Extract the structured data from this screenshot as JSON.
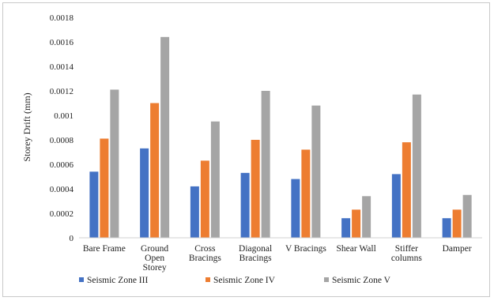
{
  "chart_data": {
    "type": "bar",
    "ylabel": "Storey Drift (mm)",
    "xlabel": "",
    "ylim": [
      0,
      0.0018
    ],
    "yticks": [
      "0",
      "0.0002",
      "0.0004",
      "0.0006",
      "0.0008",
      "0.001",
      "0.0012",
      "0.0014",
      "0.0016",
      "0.0018"
    ],
    "grid": false,
    "legend_position": "bottom",
    "categories": [
      [
        "Bare Frame"
      ],
      [
        "Ground",
        "Open",
        "Storey"
      ],
      [
        "Cross",
        "Bracings"
      ],
      [
        "Diagonal",
        "Bracings"
      ],
      [
        "V Bracings"
      ],
      [
        "Shear Wall"
      ],
      [
        "Stiffer",
        "columns"
      ],
      [
        "Damper"
      ]
    ],
    "series": [
      {
        "name": "Seismic Zone III",
        "color": "#4472c4",
        "values": [
          0.00054,
          0.00073,
          0.00042,
          0.00053,
          0.00048,
          0.00016,
          0.00052,
          0.00016
        ]
      },
      {
        "name": "Seismic Zone IV",
        "color": "#ed7d31",
        "values": [
          0.00081,
          0.0011,
          0.00063,
          0.0008,
          0.00072,
          0.00023,
          0.00078,
          0.00023
        ]
      },
      {
        "name": "Seismic Zone V",
        "color": "#a5a5a5",
        "values": [
          0.00121,
          0.00164,
          0.00095,
          0.0012,
          0.00108,
          0.00034,
          0.00117,
          0.00035
        ]
      }
    ]
  }
}
